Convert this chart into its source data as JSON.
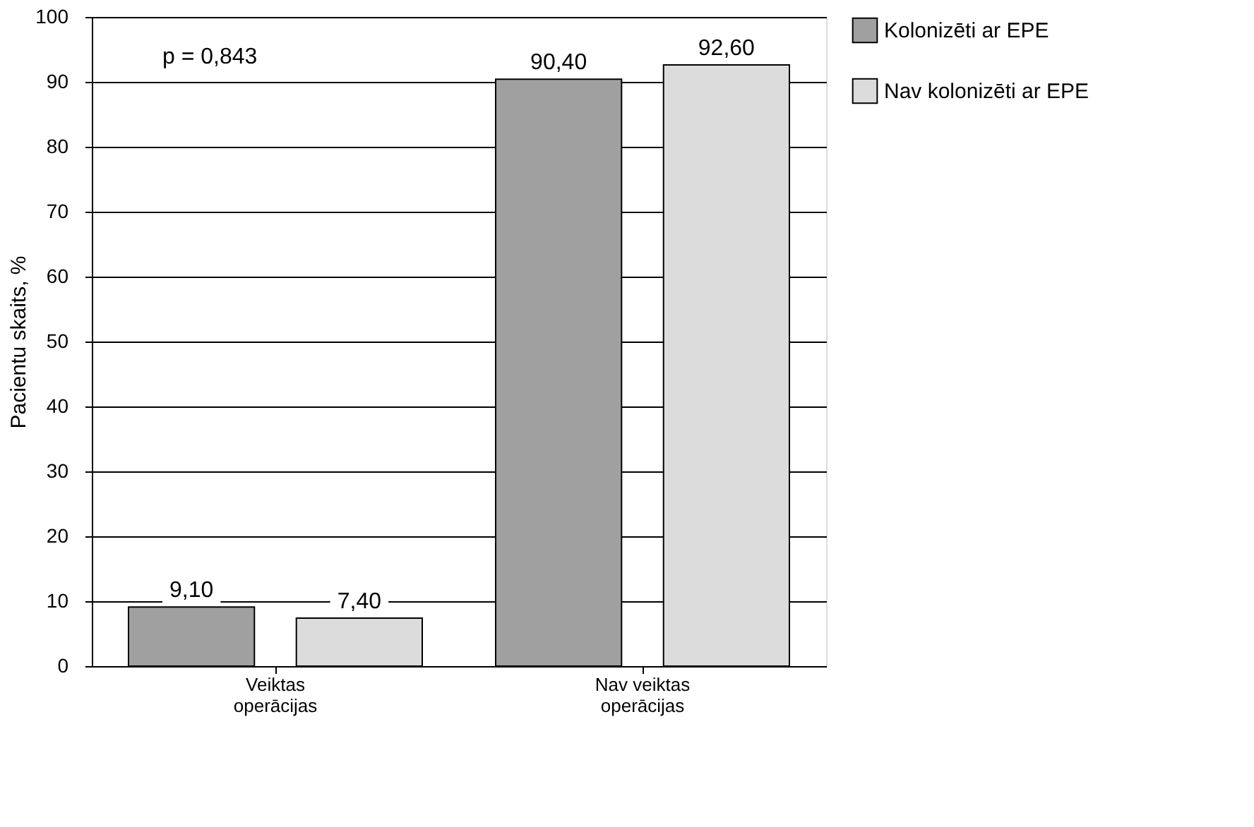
{
  "chart_data": {
    "type": "bar",
    "ylabel": "Pacientu skaits, %",
    "categories": [
      "Veiktas operācijas",
      "Nav veiktas operācijas"
    ],
    "series": [
      {
        "name": "Kolonizēti ar EPE",
        "color": "#a0a0a0",
        "values": [
          9.1,
          90.4
        ],
        "value_labels": [
          "9,10",
          "90,40"
        ]
      },
      {
        "name": "Nav kolonizēti ar EPE",
        "color": "#dcdcdc",
        "values": [
          7.4,
          92.6
        ],
        "value_labels": [
          "7,40",
          "92,60"
        ]
      }
    ],
    "ylim": [
      0,
      100
    ],
    "yticks": [
      0,
      10,
      20,
      30,
      40,
      50,
      60,
      70,
      80,
      90,
      100
    ],
    "annotations": [
      "p = 0,843"
    ],
    "grid": "y",
    "legend": "right"
  }
}
